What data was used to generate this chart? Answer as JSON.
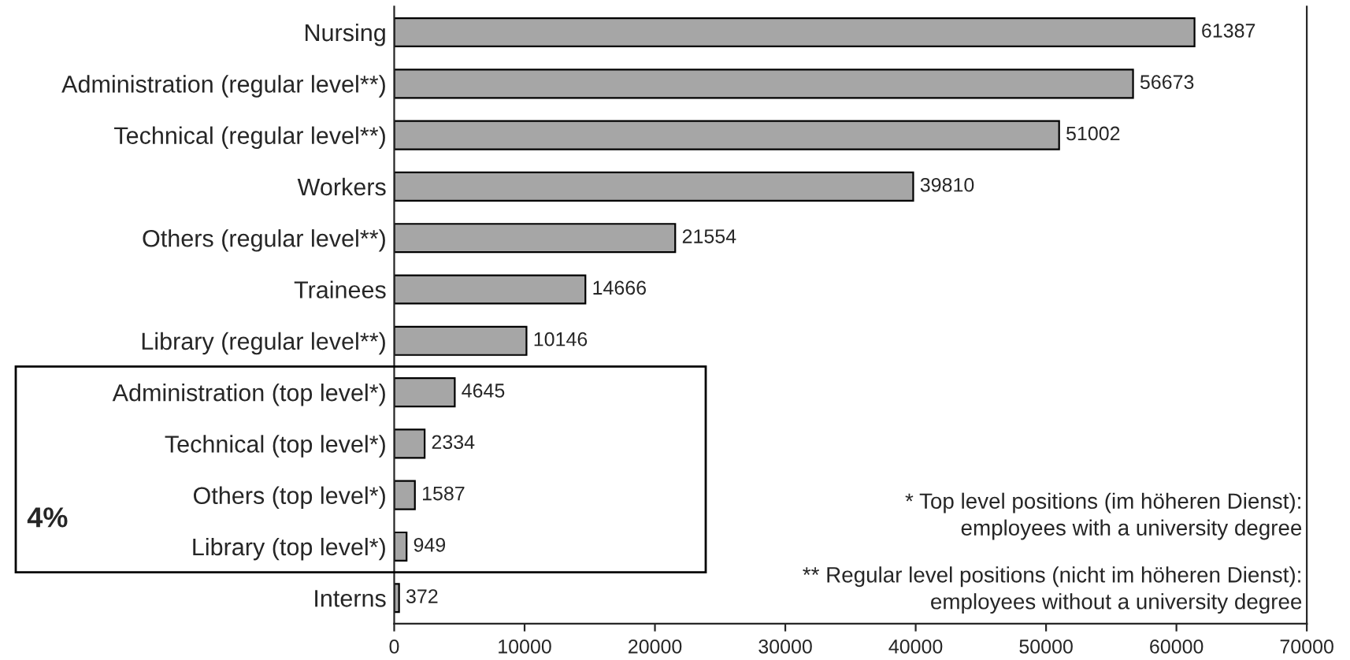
{
  "chart_data": {
    "type": "bar",
    "orientation": "horizontal",
    "categories": [
      "Nursing",
      "Administration (regular level**)",
      "Technical (regular level**)",
      "Workers",
      "Others (regular level**)",
      "Trainees",
      "Library (regular level**)",
      "Administration (top level*)",
      "Technical (top level*)",
      "Others (top level*)",
      "Library (top level*)",
      "Interns"
    ],
    "values": [
      61387,
      56673,
      51002,
      39810,
      21554,
      14666,
      10146,
      4645,
      2334,
      1587,
      949,
      372
    ],
    "color": "#a6a6a6",
    "xlim": [
      0,
      70000
    ],
    "xticks": [
      0,
      10000,
      20000,
      30000,
      40000,
      50000,
      60000,
      70000
    ],
    "data_labels": true,
    "grid": false,
    "legend": false,
    "annotations": [
      "4%",
      "* Top level positions (im höheren Dienst):\nemployees with a university degree",
      "** Regular level positions (nicht im höheren Dienst):\nemployees without a university degree"
    ]
  }
}
